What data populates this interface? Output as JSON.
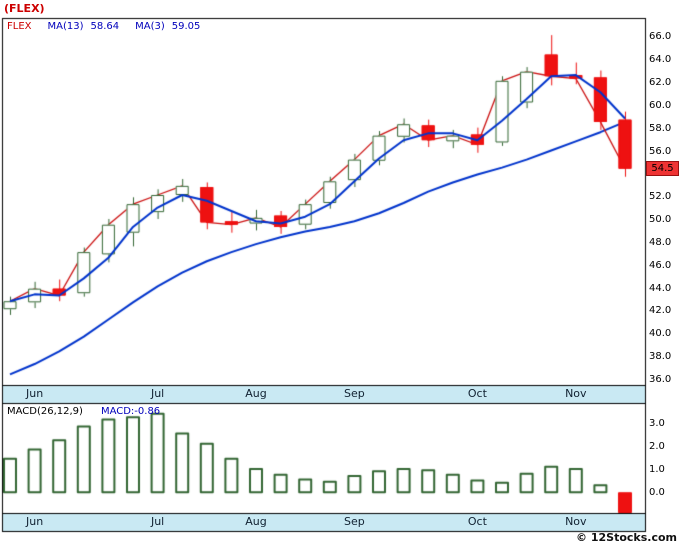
{
  "title": "(FLEX)",
  "watermark": "© 12Stocks.com",
  "colors": {
    "band_bg": "#c9e9f3",
    "up_candle": "#336633",
    "down_candle": "#ee1111",
    "ma_line": "#0033cc",
    "price_line": "#cc1111",
    "border": "#000000",
    "accent_red": "#cc0000",
    "legend_blue": "#0000bb"
  },
  "main_chart": {
    "legend": {
      "symbol": "FLEX",
      "ma13_label": "MA(13)",
      "ma13_value": "58.64",
      "ma3_label": "MA(3)",
      "ma3_value": "59.05"
    },
    "last_price_badge": "54.5"
  },
  "macd_panel": {
    "label": "MACD(26,12,9)",
    "value_text": "MACD:-0.86"
  },
  "chart_data": [
    {
      "type": "candlestick",
      "title": "FLEX weekly price with MA(13), MA(3) and close line",
      "x_axis": {
        "labels": [
          "Jun",
          "Jul",
          "Aug",
          "Sep",
          "Oct",
          "Nov"
        ],
        "candle_index": [
          1,
          6,
          10,
          14,
          19,
          23
        ]
      },
      "y_ticks": [
        "66.0",
        "64.0",
        "62.0",
        "60.0",
        "58.0",
        "56.0",
        "52.0",
        "50.0",
        "48.0",
        "46.0",
        "44.0",
        "42.0",
        "40.0",
        "38.0",
        "36.0"
      ],
      "ylim": [
        35.6,
        67.7
      ],
      "last_price": 54.5,
      "candles": [
        [
          42.2,
          43.3,
          41.7,
          42.9
        ],
        [
          42.8,
          44.6,
          42.3,
          44.0
        ],
        [
          44.0,
          44.8,
          42.9,
          43.4
        ],
        [
          43.6,
          47.6,
          43.3,
          47.2
        ],
        [
          47.0,
          50.1,
          46.3,
          49.6
        ],
        [
          48.9,
          52.0,
          47.7,
          51.4
        ],
        [
          50.7,
          52.7,
          50.1,
          52.2
        ],
        [
          52.2,
          53.6,
          51.6,
          53.0
        ],
        [
          52.9,
          53.3,
          49.2,
          49.8
        ],
        [
          49.9,
          50.8,
          48.9,
          49.6
        ],
        [
          49.7,
          50.9,
          49.1,
          50.2
        ],
        [
          50.4,
          50.8,
          48.8,
          49.4
        ],
        [
          49.6,
          51.8,
          49.2,
          51.4
        ],
        [
          51.5,
          53.8,
          51.0,
          53.4
        ],
        [
          53.5,
          55.8,
          52.9,
          55.3
        ],
        [
          55.2,
          57.8,
          54.8,
          57.4
        ],
        [
          57.3,
          58.9,
          56.8,
          58.4
        ],
        [
          58.3,
          58.8,
          56.4,
          57.0
        ],
        [
          56.9,
          57.9,
          56.3,
          57.4
        ],
        [
          57.5,
          58.1,
          55.9,
          56.6
        ],
        [
          56.8,
          62.6,
          56.5,
          62.2
        ],
        [
          60.3,
          63.4,
          59.8,
          63.0
        ],
        [
          64.5,
          66.2,
          61.8,
          62.6
        ],
        [
          62.7,
          63.8,
          61.9,
          62.4
        ],
        [
          62.5,
          63.1,
          57.9,
          58.6
        ],
        [
          58.8,
          59.5,
          53.8,
          54.5
        ]
      ],
      "series": [
        {
          "name": "MA(3)",
          "values": [
            42.9,
            43.5,
            43.4,
            44.9,
            46.7,
            49.4,
            51.1,
            52.2,
            51.7,
            50.8,
            49.9,
            49.7,
            50.3,
            51.4,
            53.4,
            55.4,
            57.0,
            57.6,
            57.6,
            57.0,
            58.7,
            60.6,
            62.6,
            62.7,
            61.2,
            58.9
          ]
        },
        {
          "name": "MA(13)",
          "values": [
            36.5,
            37.4,
            38.5,
            39.8,
            41.3,
            42.8,
            44.2,
            45.4,
            46.4,
            47.2,
            47.9,
            48.5,
            49.0,
            49.4,
            49.9,
            50.6,
            51.5,
            52.5,
            53.3,
            54.0,
            54.6,
            55.3,
            56.1,
            56.9,
            57.7,
            58.6
          ]
        }
      ]
    },
    {
      "type": "bar",
      "title": "MACD(26,12,9)",
      "y_ticks": [
        "3.0",
        "2.0",
        "1.0",
        "0.0"
      ],
      "ylim": [
        -0.9,
        3.9
      ],
      "latest": -0.86,
      "values": [
        1.5,
        1.9,
        2.3,
        2.9,
        3.2,
        3.3,
        3.45,
        2.6,
        2.15,
        1.5,
        1.05,
        0.8,
        0.6,
        0.5,
        0.75,
        0.95,
        1.05,
        1.0,
        0.8,
        0.55,
        0.45,
        0.85,
        1.15,
        1.05,
        0.35,
        -0.86
      ]
    }
  ]
}
